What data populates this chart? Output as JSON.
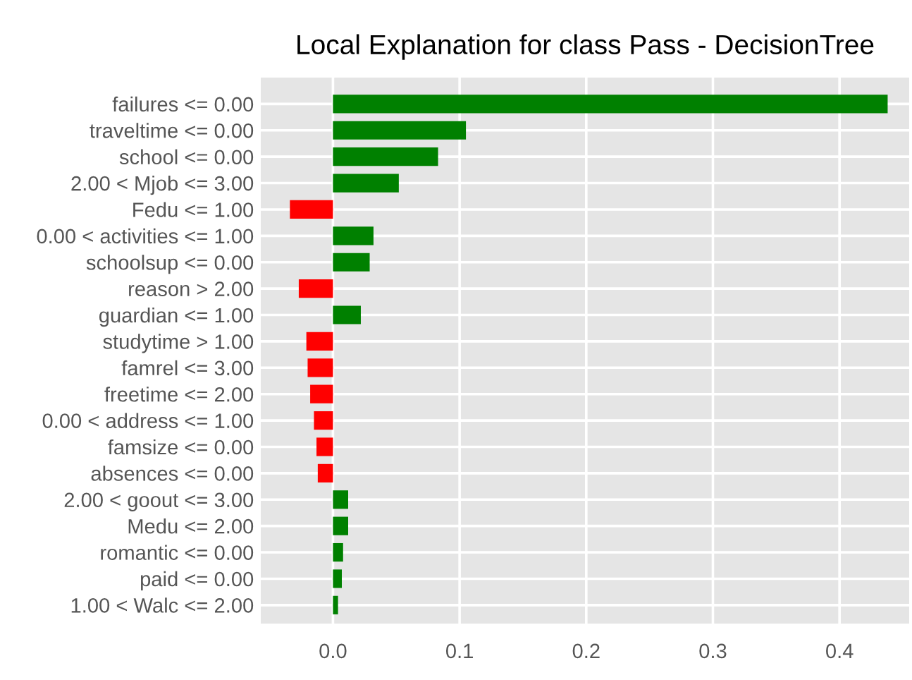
{
  "chart_data": {
    "type": "bar",
    "orientation": "horizontal",
    "title": "Local Explanation for class Pass - DecisionTree",
    "categories": [
      "failures <= 0.00",
      "traveltime <= 0.00",
      "school <= 0.00",
      "2.00 < Mjob <= 3.00",
      "Fedu <= 1.00",
      "0.00 < activities <= 1.00",
      "schoolsup <= 0.00",
      "reason > 2.00",
      "guardian <= 1.00",
      "studytime > 1.00",
      "famrel <= 3.00",
      "freetime <= 2.00",
      "0.00 < address <= 1.00",
      "famsize <= 0.00",
      "absences <= 0.00",
      "2.00 < goout <= 3.00",
      "Medu <= 2.00",
      "romantic <= 0.00",
      "paid <= 0.00",
      "1.00 < Walc <= 2.00"
    ],
    "values": [
      0.438,
      0.105,
      0.083,
      0.052,
      -0.034,
      0.032,
      0.029,
      -0.027,
      0.022,
      -0.021,
      -0.02,
      -0.018,
      -0.015,
      -0.013,
      -0.012,
      0.012,
      0.012,
      0.008,
      0.007,
      0.004
    ],
    "colors": [
      "#008000",
      "#008000",
      "#008000",
      "#008000",
      "#ff0000",
      "#008000",
      "#008000",
      "#ff0000",
      "#008000",
      "#ff0000",
      "#ff0000",
      "#ff0000",
      "#ff0000",
      "#ff0000",
      "#ff0000",
      "#008000",
      "#008000",
      "#008000",
      "#008000",
      "#008000"
    ],
    "xlim": [
      -0.057,
      0.455
    ],
    "xticks": [
      {
        "value": 0,
        "label": "0.0"
      },
      0.1,
      0.2,
      0.3,
      0.4
    ],
    "grid": true
  }
}
